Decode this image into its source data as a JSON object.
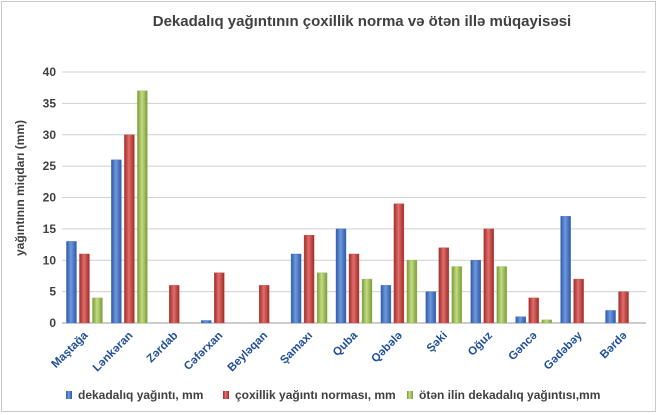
{
  "chart_data": {
    "type": "bar",
    "title": "Dekadalıq yağıntının çoxillik norma  və ötən illə müqayisəsi",
    "ylabel": "yağıntının miqdarı (mm)",
    "xlabel": "",
    "ylim": [
      0,
      40
    ],
    "yticks": [
      "0",
      "5",
      "10",
      "15",
      "20",
      "25",
      "30",
      "35",
      "40"
    ],
    "grid": true,
    "legend_position": "bottom",
    "categories": [
      "Maştağa",
      "Lənkəran",
      "Zərdab",
      "Cəfərxan",
      "Beyləqan",
      "Şamaxı",
      "Quba",
      "Qəbələ",
      "Şəki",
      "Oğuz",
      "Gəncə",
      "Gədəbəy",
      "Bərdə"
    ],
    "series": [
      {
        "name": "dekadalıq yağıntı, mm",
        "color": "#4472c4",
        "values": [
          13,
          26,
          null,
          0.4,
          null,
          11,
          15,
          6,
          5,
          10,
          1,
          17,
          2
        ]
      },
      {
        "name": "çoxillik yağıntı norması, mm",
        "color": "#c0504d",
        "values": [
          11,
          30,
          6,
          8,
          6,
          14,
          11,
          19,
          12,
          15,
          4,
          7,
          5
        ]
      },
      {
        "name": "ötən ilin dekadalıq yağıntısı,mm",
        "color": "#9bbb59",
        "values": [
          4,
          37,
          null,
          null,
          null,
          8,
          7,
          10,
          9,
          9,
          0.5,
          null,
          null
        ]
      }
    ]
  }
}
